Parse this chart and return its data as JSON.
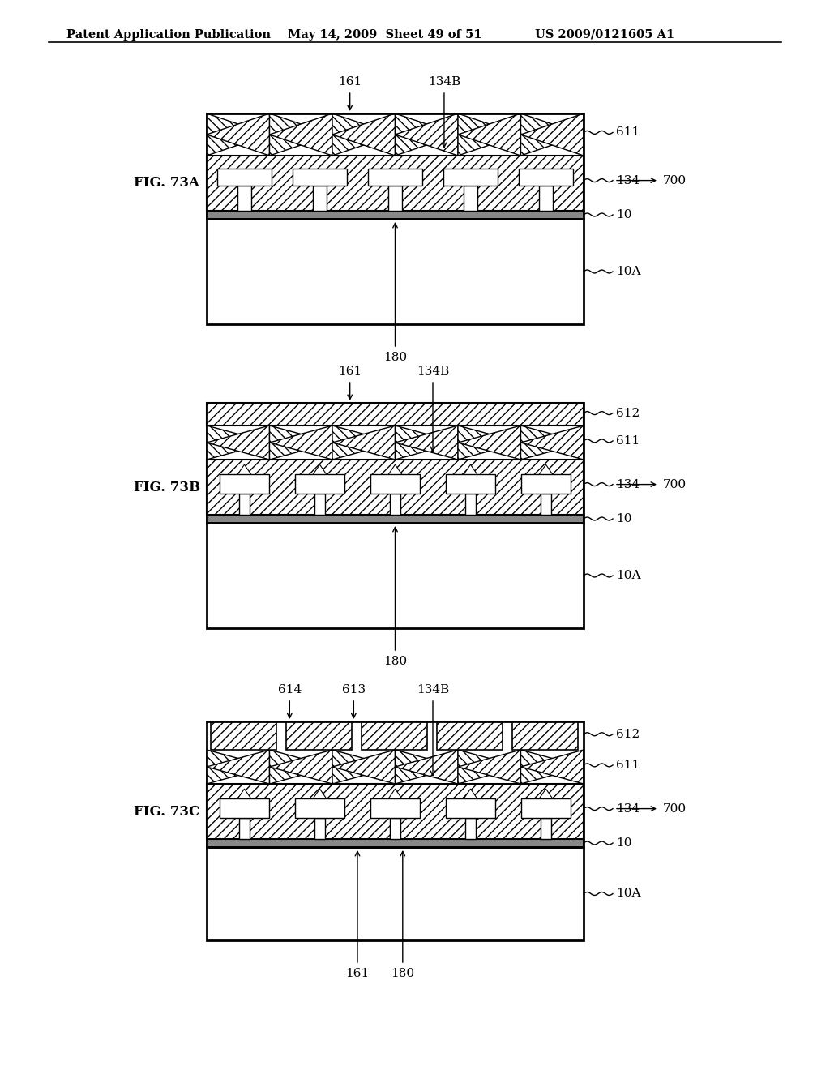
{
  "header_left": "Patent Application Publication",
  "header_mid": "May 14, 2009  Sheet 49 of 51",
  "header_right": "US 2009/0121605 A1",
  "fig_labels": [
    "FIG. 73A",
    "FIG. 73B",
    "FIG. 73C"
  ],
  "background_color": "#ffffff"
}
